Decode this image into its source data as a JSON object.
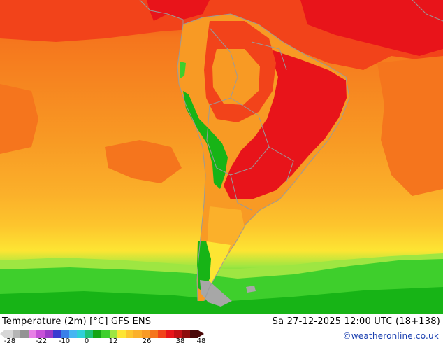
{
  "map": {
    "title": "Temperature (2m) [°C] GFS ENS",
    "valid_time": "Sa 27-12-2025 12:00 UTC (18+138)",
    "credit": "©weatheronline.co.uk",
    "region": "South America",
    "colors": {
      "very_hot": "#e8141a",
      "hot": "#f2431a",
      "warm": "#f5751d",
      "mild": "#f89a24",
      "orange_light": "#fbb02a",
      "yellow_orange": "#fdc52d",
      "yellow": "#fde533",
      "light_green": "#9ee642",
      "green": "#3ecf2c",
      "dark_green": "#17b416",
      "cold_grey": "#a7a7a7",
      "coastline": "#9a9a9a"
    }
  },
  "legend": {
    "ticks": [
      "-28",
      "-22",
      "-10",
      "0",
      "12",
      "26",
      "38",
      "48"
    ],
    "segments": [
      "#d7d7d7",
      "#b5b5b5",
      "#939393",
      "#e87fe6",
      "#c74fd8",
      "#9b38c8",
      "#3a3ad0",
      "#3a7fe8",
      "#45b5f2",
      "#2fd0d8",
      "#1ec27a",
      "#14a514",
      "#3ecf2c",
      "#9ee642",
      "#fde533",
      "#fdc52d",
      "#fbb02a",
      "#f89a24",
      "#f5751d",
      "#f2431a",
      "#e8141a",
      "#c20f14",
      "#8d0b0b",
      "#4a0808"
    ]
  }
}
